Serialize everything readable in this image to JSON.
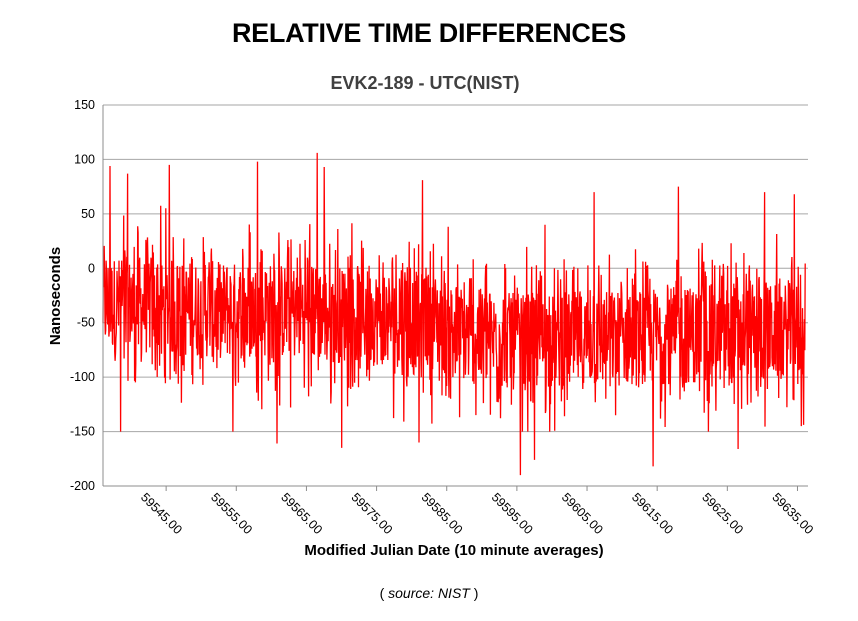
{
  "header": {
    "title": "RELATIVE TIME DIFFERENCES"
  },
  "footer": {
    "open": "( ",
    "source_label": "source: NIST",
    "close": " )"
  },
  "chart_data": {
    "type": "line",
    "title": "EVK2-189 - UTC(NIST)",
    "xlabel": "Modified Julian Date (10 minute averages)",
    "ylabel": "Nanoseconds",
    "x_range": [
      59536,
      59636.5
    ],
    "ylim": [
      -200,
      150
    ],
    "y_ticks": [
      -200,
      -150,
      -100,
      -50,
      0,
      50,
      100,
      150
    ],
    "x_ticks": [
      "59545.00",
      "59555.00",
      "59565.00",
      "59575.00",
      "59585.00",
      "59595.00",
      "59605.00",
      "59615.00",
      "59625.00",
      "59635.00"
    ],
    "grid": "horizontal",
    "legend": "none",
    "series": [
      {
        "color": "#ff0000",
        "trend": [
          {
            "x": 59536,
            "y": -33
          },
          {
            "x": 59550,
            "y": -38
          },
          {
            "x": 59565,
            "y": -40
          },
          {
            "x": 59575,
            "y": -45
          },
          {
            "x": 59583,
            "y": -48
          },
          {
            "x": 59588,
            "y": -62
          },
          {
            "x": 59595,
            "y": -68
          },
          {
            "x": 59605,
            "y": -66
          },
          {
            "x": 59615,
            "y": -62
          },
          {
            "x": 59625,
            "y": -60
          },
          {
            "x": 59636,
            "y": -58
          }
        ],
        "peaks": [
          {
            "x": 59537.0,
            "y": 94
          },
          {
            "x": 59539.5,
            "y": 87
          },
          {
            "x": 59545.4,
            "y": 95
          },
          {
            "x": 59558.0,
            "y": 98
          },
          {
            "x": 59566.5,
            "y": 106
          },
          {
            "x": 59567.5,
            "y": 93
          },
          {
            "x": 59581.5,
            "y": 81
          },
          {
            "x": 59599.0,
            "y": 40
          },
          {
            "x": 59606.0,
            "y": 70
          },
          {
            "x": 59618.0,
            "y": 75
          },
          {
            "x": 59630.3,
            "y": 70
          },
          {
            "x": 59634.5,
            "y": 68
          }
        ],
        "troughs": [
          {
            "x": 59538.5,
            "y": -150
          },
          {
            "x": 59554.5,
            "y": -150
          },
          {
            "x": 59560.8,
            "y": -161
          },
          {
            "x": 59570.0,
            "y": -165
          },
          {
            "x": 59581.0,
            "y": -160
          },
          {
            "x": 59595.5,
            "y": -190
          },
          {
            "x": 59597.5,
            "y": -176
          },
          {
            "x": 59614.4,
            "y": -182
          },
          {
            "x": 59626.5,
            "y": -166
          },
          {
            "x": 59635.5,
            "y": -145
          }
        ]
      }
    ]
  }
}
